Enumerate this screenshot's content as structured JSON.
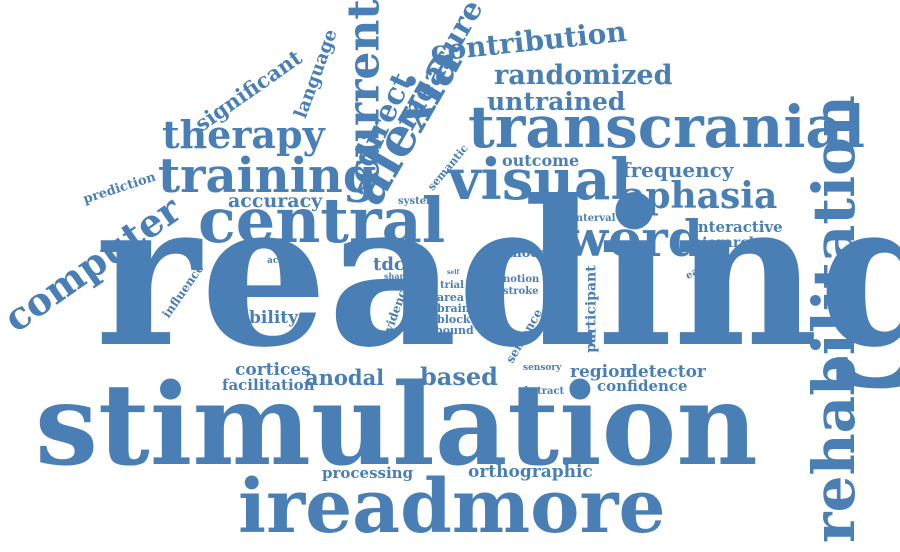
{
  "color": "#4a7fb5",
  "words": [
    "reading",
    "stimulation",
    "ireadmore",
    "rehabilitation",
    "transcranial",
    "central",
    "visual",
    "training",
    "alexia",
    "word",
    "therapy",
    "current",
    "computer",
    "aphasia",
    "direct",
    "measure",
    "contribution",
    "randomized",
    "untrained",
    "significant",
    "language",
    "accuracy",
    "outcome",
    "frequency",
    "based",
    "anodal",
    "tdcs",
    "cortices",
    "facilitation",
    "ability",
    "processing",
    "orthographic",
    "confidence",
    "region",
    "detector",
    "interactive",
    "hierarchy",
    "model",
    "participant",
    "sentence",
    "evidence",
    "influence",
    "prediction",
    "semantic",
    "system",
    "activity",
    "interval",
    "earliest",
    "notion",
    "stroke",
    "trial",
    "area",
    "brain",
    "block",
    "bound",
    "sham",
    "sensory",
    "abstract",
    "self",
    "level"
  ]
}
